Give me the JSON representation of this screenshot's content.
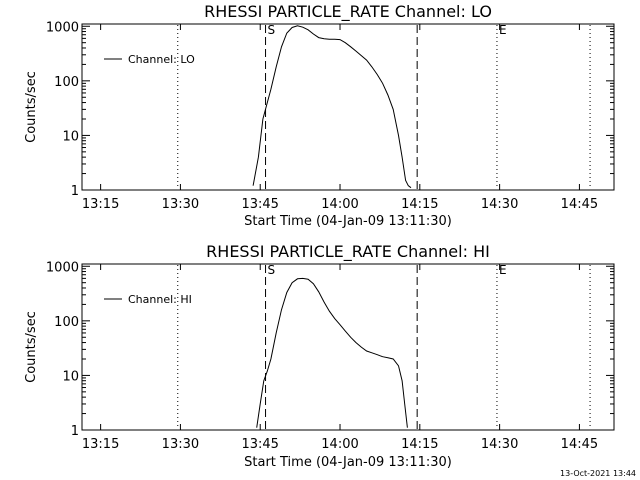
{
  "footer": {
    "date": "13-Oct-2021 13:44"
  },
  "chart_data": [
    {
      "type": "line",
      "title": "RHESSI PARTICLE_RATE Channel: LO",
      "xlabel": "Start Time (04-Jan-09 13:11:30)",
      "ylabel": "Counts/sec",
      "y_scale": "log",
      "xlim": [
        "13:11:30",
        "14:51:30"
      ],
      "ylim": [
        1,
        1100
      ],
      "x_ticks": [
        "13:15",
        "13:30",
        "13:45",
        "14:00",
        "14:15",
        "14:30",
        "14:45"
      ],
      "y_ticks": [
        1,
        10,
        100,
        1000
      ],
      "y_tick_labels": [
        "1",
        "10",
        "100",
        "1000"
      ],
      "legend": {
        "position": "top-left",
        "line": "solid"
      },
      "series": [
        {
          "name": "Channel: LO",
          "x": [
            "13:43:40",
            "13:44:40",
            "13:45:30",
            "13:46:20",
            "13:47:00",
            "13:48:00",
            "13:49:00",
            "13:50:00",
            "13:51:00",
            "13:52:00",
            "13:53:00",
            "13:54:00",
            "13:55:00",
            "13:56:00",
            "13:57:00",
            "13:58:00",
            "13:59:00",
            "14:00:00",
            "14:01:00",
            "14:02:00",
            "14:03:00",
            "14:04:00",
            "14:05:00",
            "14:06:00",
            "14:07:00",
            "14:08:00",
            "14:09:00",
            "14:10:00",
            "14:11:00",
            "14:11:40",
            "14:12:20",
            "14:12:50",
            "14:13:20"
          ],
          "y": [
            1.2,
            4,
            20,
            40,
            70,
            180,
            420,
            750,
            950,
            1020,
            960,
            860,
            720,
            620,
            590,
            580,
            580,
            570,
            500,
            420,
            350,
            290,
            240,
            180,
            130,
            90,
            55,
            30,
            10,
            4,
            1.5,
            1.2,
            1.1
          ]
        }
      ],
      "vlines": [
        {
          "x": "13:29:30",
          "style": "dotted"
        },
        {
          "x": "13:46:00",
          "style": "dashed",
          "label": "S"
        },
        {
          "x": "14:14:30",
          "style": "dashed"
        },
        {
          "x": "14:29:30",
          "style": "dotted",
          "label": "E"
        },
        {
          "x": "14:47:00",
          "style": "dotted"
        }
      ]
    },
    {
      "type": "line",
      "title": "RHESSI PARTICLE_RATE Channel: HI",
      "xlabel": "Start Time (04-Jan-09 13:11:30)",
      "ylabel": "Counts/sec",
      "y_scale": "log",
      "xlim": [
        "13:11:30",
        "14:51:30"
      ],
      "ylim": [
        1,
        1100
      ],
      "x_ticks": [
        "13:15",
        "13:30",
        "13:45",
        "14:00",
        "14:15",
        "14:30",
        "14:45"
      ],
      "y_ticks": [
        1,
        10,
        100,
        1000
      ],
      "y_tick_labels": [
        "1",
        "10",
        "100",
        "1000"
      ],
      "legend": {
        "position": "top-left",
        "line": "solid"
      },
      "series": [
        {
          "name": "Channel: HI",
          "x": [
            "13:44:20",
            "13:45:00",
            "13:45:40",
            "13:46:20",
            "13:47:00",
            "13:48:00",
            "13:49:00",
            "13:50:00",
            "13:51:00",
            "13:52:00",
            "13:53:00",
            "13:54:00",
            "13:55:00",
            "13:56:00",
            "13:57:00",
            "13:58:00",
            "13:59:00",
            "14:00:00",
            "14:01:00",
            "14:02:00",
            "14:03:00",
            "14:04:00",
            "14:05:00",
            "14:06:00",
            "14:07:00",
            "14:08:00",
            "14:09:00",
            "14:10:00",
            "14:11:00",
            "14:11:40",
            "14:12:10",
            "14:12:40"
          ],
          "y": [
            1.1,
            3,
            8,
            12,
            20,
            60,
            160,
            330,
            500,
            590,
            600,
            580,
            480,
            340,
            220,
            150,
            110,
            85,
            65,
            50,
            40,
            33,
            28,
            26,
            24,
            22,
            21,
            20,
            15,
            8,
            3,
            1.1
          ]
        }
      ],
      "vlines": [
        {
          "x": "13:29:30",
          "style": "dotted"
        },
        {
          "x": "13:46:00",
          "style": "dashed",
          "label": "S"
        },
        {
          "x": "14:14:30",
          "style": "dashed"
        },
        {
          "x": "14:29:30",
          "style": "dotted",
          "label": "E"
        },
        {
          "x": "14:47:00",
          "style": "dotted"
        }
      ]
    }
  ]
}
